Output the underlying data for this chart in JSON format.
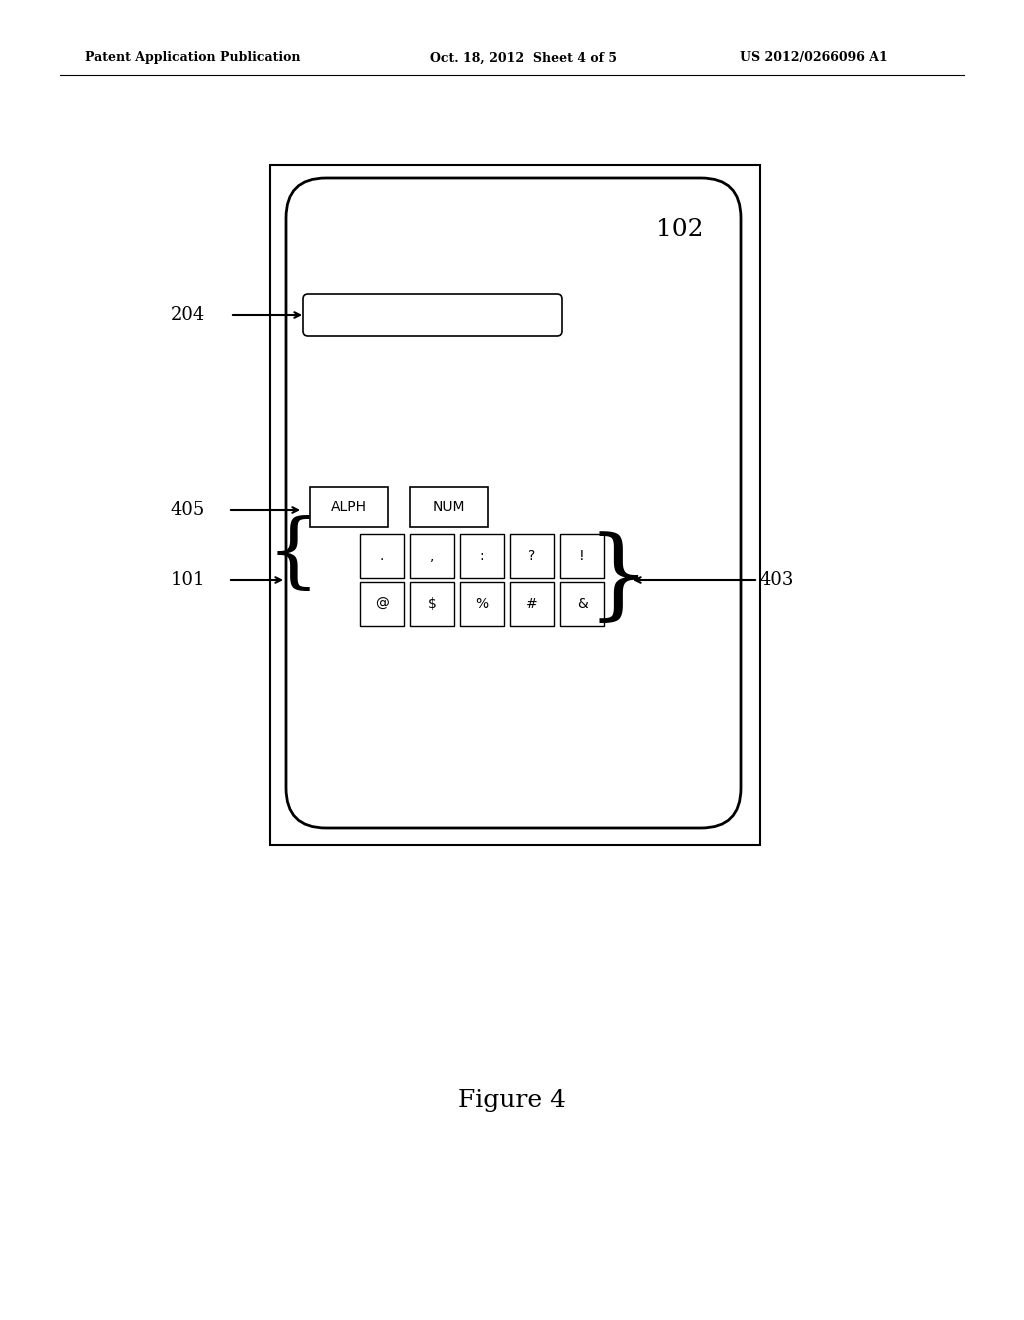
{
  "bg_color": "#ffffff",
  "header_left": "Patent Application Publication",
  "header_mid": "Oct. 18, 2012  Sheet 4 of 5",
  "header_right": "US 2012/0266096 A1",
  "figure_caption": "Figure 4",
  "label_102": "102",
  "label_204": "204",
  "label_405": "405",
  "label_101": "101",
  "label_403": "403",
  "row1_keys": [
    ".",
    ",",
    ":",
    "?",
    "!"
  ],
  "row2_keys": [
    "@",
    "$",
    "%",
    "#",
    "&"
  ],
  "mode_keys": [
    "ALPH",
    "NUM"
  ]
}
